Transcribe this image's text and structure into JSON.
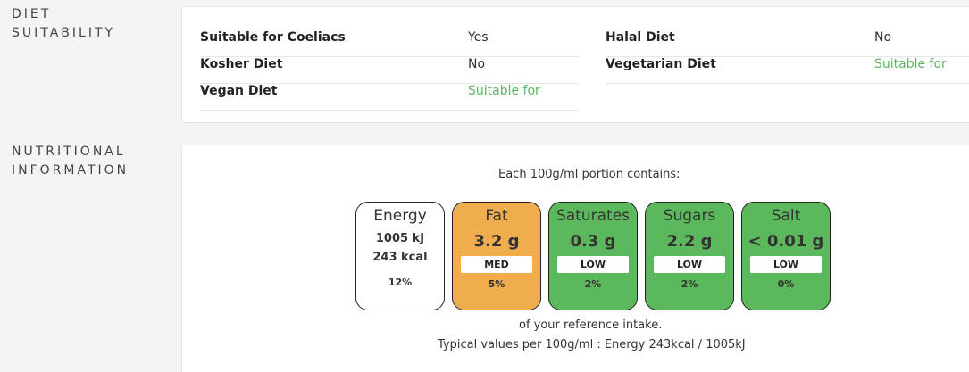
{
  "diet": {
    "heading": [
      "DIET",
      "SUITABILITY"
    ],
    "left": [
      {
        "label": "Suitable for Coeliacs",
        "value": "Yes"
      },
      {
        "label": "Kosher Diet",
        "value": "No"
      },
      {
        "label": "Vegan Diet",
        "value": "Suitable for"
      }
    ],
    "right": [
      {
        "label": "Halal Diet",
        "value": "No"
      },
      {
        "label": "Vegetarian Diet",
        "value": "Suitable for"
      }
    ]
  },
  "nutrition": {
    "heading": [
      "NUTRITIONAL",
      "INFORMATION"
    ],
    "portion_text": "Each 100g/ml portion contains:",
    "energy": {
      "name": "Energy",
      "kj": "1005 kJ",
      "kcal": "243 kcal",
      "percent": "12%"
    },
    "tiles": [
      {
        "name": "Fat",
        "amount": "3.2 g",
        "band": "MED",
        "percent": "5%"
      },
      {
        "name": "Saturates",
        "amount": "0.3 g",
        "band": "LOW",
        "percent": "2%"
      },
      {
        "name": "Sugars",
        "amount": "2.2 g",
        "band": "LOW",
        "percent": "2%"
      },
      {
        "name": "Salt",
        "amount": "< 0.01 g",
        "band": "LOW",
        "percent": "0%"
      }
    ],
    "reference_text": "of your reference intake.",
    "typical_text": "Typical values per 100g/ml : Energy 243kcal / 1005kJ"
  },
  "colors": {
    "low": "#5cb85c",
    "med": "#f0ad4e",
    "green_text": "#5cb85c"
  }
}
